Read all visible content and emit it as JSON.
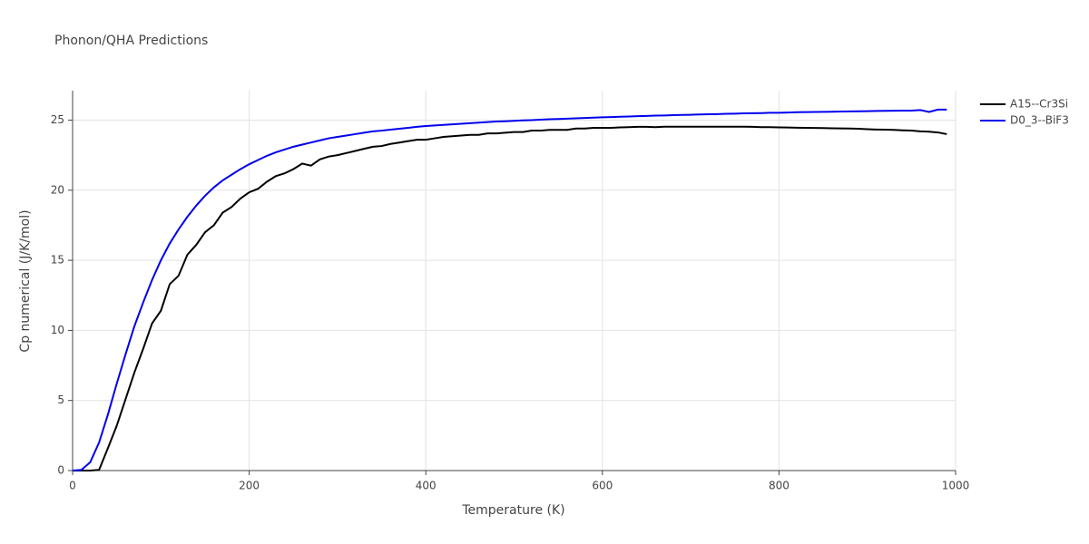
{
  "chart_data": {
    "type": "line",
    "title": "Phonon/QHA Predictions",
    "x_label": "Temperature (K)",
    "y_label": "Cp numerical (J/K/mol)",
    "xlim": [
      0,
      1000
    ],
    "ylim": [
      0,
      27.1
    ],
    "xticks": [
      0,
      200,
      400,
      600,
      800,
      1000
    ],
    "yticks": [
      0,
      5,
      10,
      15,
      20,
      25
    ],
    "grid": true,
    "x": [
      0,
      10,
      20,
      30,
      40,
      50,
      60,
      70,
      80,
      90,
      100,
      110,
      120,
      130,
      140,
      150,
      160,
      170,
      180,
      190,
      200,
      210,
      220,
      230,
      240,
      250,
      260,
      270,
      280,
      290,
      300,
      310,
      320,
      330,
      340,
      350,
      360,
      370,
      380,
      390,
      400,
      410,
      420,
      430,
      440,
      450,
      460,
      470,
      480,
      490,
      500,
      510,
      520,
      530,
      540,
      550,
      560,
      570,
      580,
      590,
      600,
      610,
      620,
      630,
      640,
      650,
      660,
      670,
      680,
      690,
      700,
      710,
      720,
      730,
      740,
      750,
      760,
      770,
      780,
      790,
      800,
      810,
      820,
      830,
      840,
      850,
      860,
      870,
      880,
      890,
      900,
      910,
      920,
      930,
      940,
      950,
      960,
      970,
      980,
      990
    ],
    "series": [
      {
        "name": "A15--Cr3Si",
        "color": "#000000",
        "values": [
          0,
          0,
          0,
          0.05,
          1.6,
          3.2,
          5.1,
          7.0,
          8.7,
          10.5,
          11.4,
          13.3,
          13.9,
          15.4,
          16.1,
          17.0,
          17.5,
          18.4,
          18.8,
          19.4,
          19.85,
          20.1,
          20.6,
          21.0,
          21.2,
          21.5,
          21.9,
          21.75,
          22.2,
          22.4,
          22.5,
          22.65,
          22.8,
          22.95,
          23.1,
          23.15,
          23.3,
          23.4,
          23.5,
          23.6,
          23.6,
          23.7,
          23.8,
          23.85,
          23.9,
          23.95,
          23.95,
          24.05,
          24.05,
          24.1,
          24.15,
          24.15,
          24.25,
          24.25,
          24.3,
          24.3,
          24.3,
          24.4,
          24.4,
          24.45,
          24.45,
          24.45,
          24.48,
          24.5,
          24.52,
          24.52,
          24.5,
          24.53,
          24.53,
          24.53,
          24.53,
          24.53,
          24.53,
          24.53,
          24.53,
          24.53,
          24.53,
          24.52,
          24.5,
          24.5,
          24.48,
          24.47,
          24.46,
          24.45,
          24.44,
          24.43,
          24.42,
          24.41,
          24.4,
          24.38,
          24.35,
          24.33,
          24.32,
          24.3,
          24.27,
          24.25,
          24.2,
          24.17,
          24.12,
          24.0
        ]
      },
      {
        "name": "D0_3--BiF3",
        "color": "#0000ee",
        "values": [
          0,
          0.05,
          0.6,
          2.0,
          4.0,
          6.2,
          8.3,
          10.3,
          12.0,
          13.6,
          15.0,
          16.2,
          17.2,
          18.1,
          18.9,
          19.6,
          20.2,
          20.7,
          21.1,
          21.5,
          21.85,
          22.15,
          22.45,
          22.7,
          22.9,
          23.1,
          23.25,
          23.4,
          23.55,
          23.7,
          23.8,
          23.9,
          24.0,
          24.1,
          24.2,
          24.25,
          24.32,
          24.38,
          24.45,
          24.52,
          24.58,
          24.62,
          24.66,
          24.7,
          24.74,
          24.78,
          24.82,
          24.86,
          24.9,
          24.92,
          24.95,
          24.98,
          25.0,
          25.03,
          25.06,
          25.08,
          25.1,
          25.13,
          25.15,
          25.18,
          25.2,
          25.22,
          25.24,
          25.26,
          25.28,
          25.3,
          25.32,
          25.33,
          25.35,
          25.37,
          25.38,
          25.4,
          25.42,
          25.43,
          25.45,
          25.46,
          25.48,
          25.49,
          25.5,
          25.52,
          25.52,
          25.54,
          25.56,
          25.57,
          25.58,
          25.59,
          25.6,
          25.61,
          25.62,
          25.63,
          25.64,
          25.65,
          25.66,
          25.67,
          25.68,
          25.68,
          25.72,
          25.58,
          25.75,
          25.75
        ]
      }
    ]
  }
}
